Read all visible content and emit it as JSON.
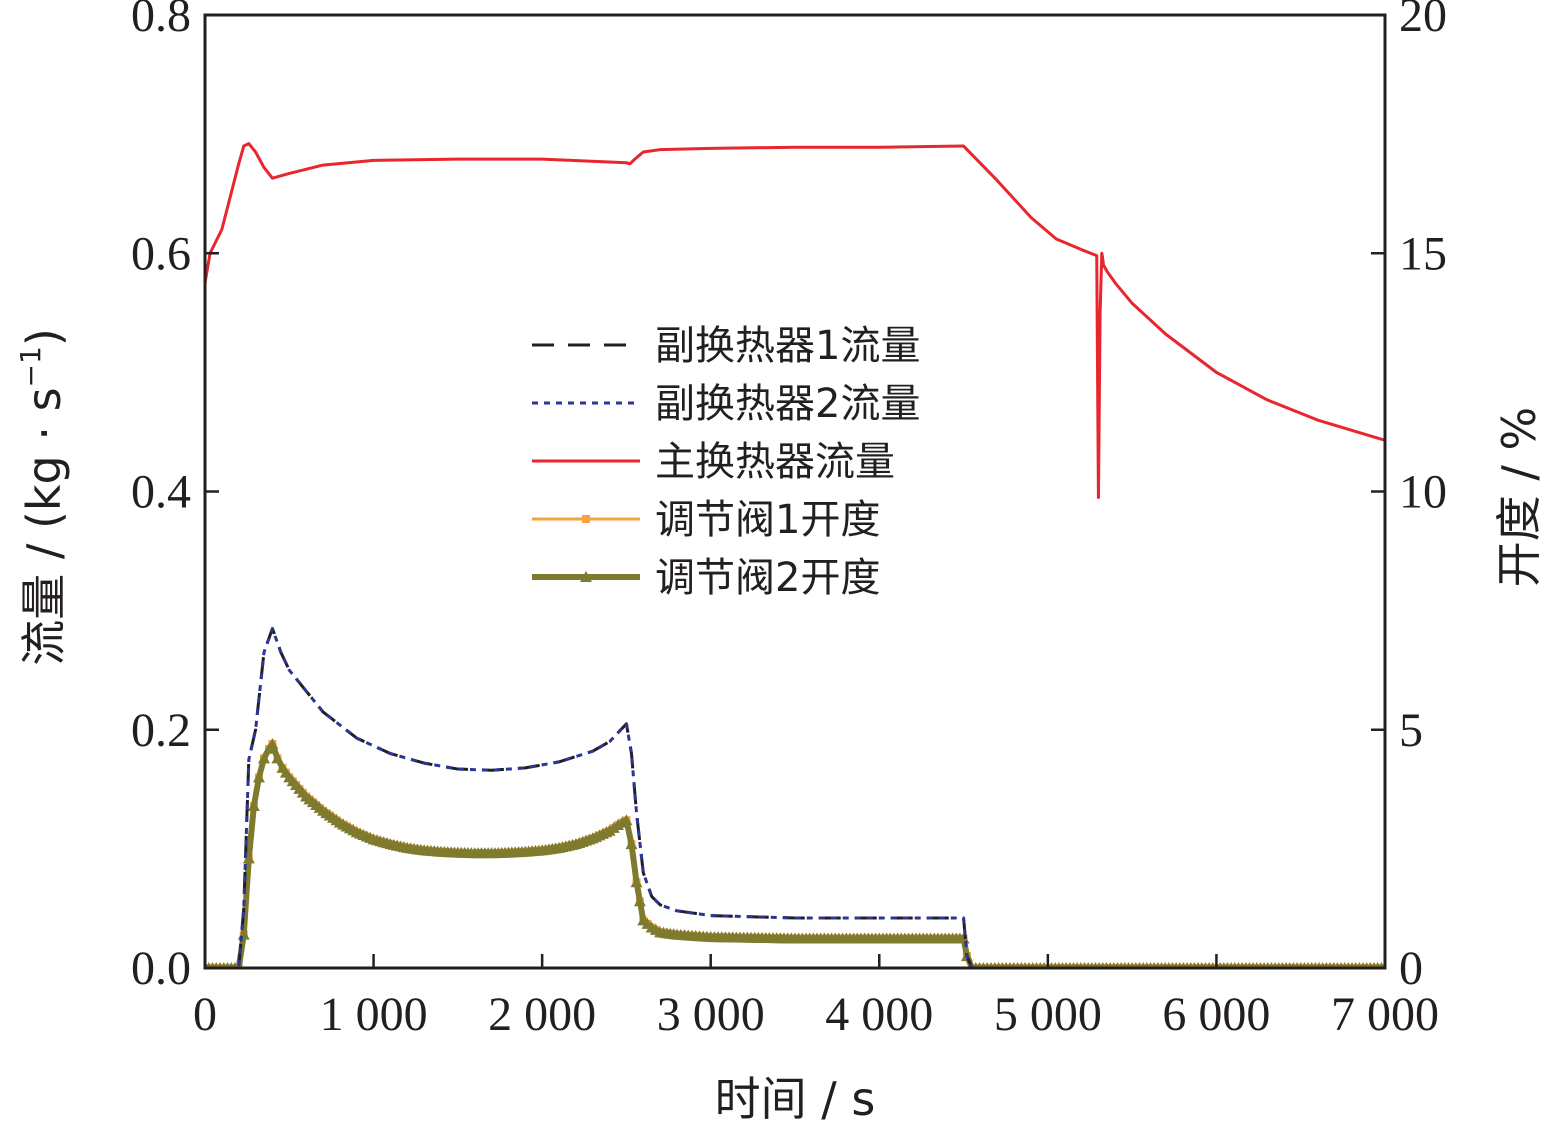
{
  "chart_data": {
    "type": "line",
    "title": "",
    "xlabel": "时间 / s",
    "ylabel_left": {
      "pre": "流量 / (kg · s",
      "sup": "−1",
      "post": ")"
    },
    "ylabel_right": "开度 / %",
    "xlim": [
      0,
      7000
    ],
    "ylim_left": [
      0,
      0.8
    ],
    "ylim_right": [
      0,
      20
    ],
    "x_ticks": [
      0,
      1000,
      2000,
      3000,
      4000,
      5000,
      6000,
      7000
    ],
    "x_tick_labels": [
      "0",
      "1 000",
      "2 000",
      "3 000",
      "4 000",
      "5 000",
      "6 000",
      "7 000"
    ],
    "y_left_ticks": [
      0,
      0.2,
      0.4,
      0.6,
      0.8
    ],
    "y_left_tick_labels": [
      "0.0",
      "0.2",
      "0.4",
      "0.6",
      "0.8"
    ],
    "y_right_ticks": [
      0,
      5,
      10,
      15,
      20
    ],
    "y_right_tick_labels": [
      "0",
      "5",
      "10",
      "15",
      "20"
    ],
    "grid": false,
    "legend_position": "center",
    "series": [
      {
        "name": "副换热器1流量",
        "axis": "left",
        "color": "#231f20",
        "style": "dash",
        "marker": "none",
        "x": [
          0,
          200,
          230,
          260,
          300,
          350,
          400,
          450,
          500,
          700,
          900,
          1100,
          1300,
          1500,
          1700,
          1900,
          2100,
          2300,
          2400,
          2500,
          2530,
          2560,
          2600,
          2650,
          2700,
          2800,
          3000,
          3500,
          4000,
          4500,
          4520,
          4550,
          7000
        ],
        "y": [
          0,
          0,
          0.05,
          0.175,
          0.2,
          0.265,
          0.285,
          0.265,
          0.25,
          0.215,
          0.193,
          0.18,
          0.172,
          0.167,
          0.166,
          0.168,
          0.173,
          0.182,
          0.19,
          0.205,
          0.18,
          0.13,
          0.08,
          0.06,
          0.053,
          0.048,
          0.044,
          0.042,
          0.042,
          0.042,
          0.01,
          0,
          0
        ]
      },
      {
        "name": "副换热器2流量",
        "axis": "left",
        "color": "#2b3595",
        "style": "dot",
        "marker": "none",
        "x": [
          0,
          200,
          230,
          260,
          300,
          350,
          400,
          450,
          500,
          700,
          900,
          1100,
          1300,
          1500,
          1700,
          1900,
          2100,
          2300,
          2400,
          2500,
          2530,
          2560,
          2600,
          2650,
          2700,
          2800,
          3000,
          3500,
          4000,
          4500,
          4520,
          4550,
          7000
        ],
        "y": [
          0,
          0,
          0.05,
          0.175,
          0.2,
          0.265,
          0.285,
          0.265,
          0.25,
          0.215,
          0.193,
          0.18,
          0.172,
          0.167,
          0.166,
          0.168,
          0.173,
          0.182,
          0.19,
          0.205,
          0.18,
          0.13,
          0.08,
          0.06,
          0.053,
          0.048,
          0.044,
          0.042,
          0.042,
          0.042,
          0.01,
          0,
          0
        ]
      },
      {
        "name": "主换热器流量",
        "axis": "left",
        "color": "#e8262d",
        "style": "solid",
        "marker": "none",
        "x": [
          0,
          30,
          100,
          200,
          230,
          260,
          300,
          350,
          400,
          500,
          700,
          1000,
          1500,
          2000,
          2500,
          2520,
          2550,
          2600,
          2700,
          3000,
          3500,
          4000,
          4500,
          4700,
          4900,
          5050,
          5200,
          5290,
          5300,
          5310,
          5320,
          5325,
          5330,
          5350,
          5400,
          5500,
          5700,
          6000,
          6300,
          6600,
          7000
        ],
        "y": [
          0.575,
          0.6,
          0.62,
          0.675,
          0.69,
          0.692,
          0.685,
          0.672,
          0.663,
          0.667,
          0.674,
          0.678,
          0.679,
          0.679,
          0.676,
          0.675,
          0.679,
          0.685,
          0.687,
          0.688,
          0.689,
          0.689,
          0.69,
          0.661,
          0.63,
          0.612,
          0.603,
          0.598,
          0.395,
          0.55,
          0.6,
          0.596,
          0.59,
          0.585,
          0.575,
          0.558,
          0.532,
          0.5,
          0.477,
          0.46,
          0.443
        ]
      },
      {
        "name": "调节阀1开度",
        "axis": "right",
        "color": "#f6a33c",
        "style": "solid",
        "marker": "square",
        "x": [
          0,
          200,
          230,
          260,
          290,
          320,
          350,
          380,
          400,
          430,
          460,
          500,
          600,
          700,
          800,
          900,
          1000,
          1100,
          1200,
          1300,
          1400,
          1500,
          1600,
          1700,
          1800,
          1900,
          2000,
          2100,
          2200,
          2300,
          2400,
          2450,
          2500,
          2530,
          2560,
          2600,
          2650,
          2700,
          2800,
          3000,
          3500,
          4000,
          4500,
          4520,
          4550,
          5000,
          5500,
          6000,
          6500,
          7000
        ],
        "y": [
          0,
          0,
          0.7,
          2.3,
          3.4,
          4.0,
          4.4,
          4.6,
          4.7,
          4.4,
          4.2,
          4.0,
          3.6,
          3.3,
          3.05,
          2.85,
          2.7,
          2.6,
          2.52,
          2.47,
          2.44,
          2.42,
          2.41,
          2.41,
          2.42,
          2.44,
          2.47,
          2.52,
          2.6,
          2.72,
          2.88,
          3.0,
          3.1,
          2.6,
          1.8,
          1.0,
          0.85,
          0.75,
          0.7,
          0.65,
          0.62,
          0.62,
          0.62,
          0.25,
          0,
          0,
          0,
          0,
          0,
          0
        ]
      },
      {
        "name": "调节阀2开度",
        "axis": "right",
        "color": "#7f7b2e",
        "style": "solid",
        "marker": "triangle",
        "x": [
          0,
          200,
          230,
          260,
          290,
          320,
          350,
          380,
          400,
          430,
          460,
          500,
          600,
          700,
          800,
          900,
          1000,
          1100,
          1200,
          1300,
          1400,
          1500,
          1600,
          1700,
          1800,
          1900,
          2000,
          2100,
          2200,
          2300,
          2400,
          2450,
          2500,
          2530,
          2560,
          2600,
          2650,
          2700,
          2800,
          3000,
          3500,
          4000,
          4500,
          4520,
          4550,
          5000,
          5500,
          6000,
          6500,
          7000
        ],
        "y": [
          0,
          0,
          0.7,
          2.3,
          3.4,
          4.0,
          4.4,
          4.6,
          4.7,
          4.4,
          4.2,
          4.0,
          3.6,
          3.3,
          3.05,
          2.85,
          2.7,
          2.6,
          2.52,
          2.47,
          2.44,
          2.42,
          2.41,
          2.41,
          2.42,
          2.44,
          2.47,
          2.52,
          2.6,
          2.72,
          2.88,
          3.0,
          3.1,
          2.6,
          1.8,
          1.0,
          0.85,
          0.75,
          0.7,
          0.65,
          0.62,
          0.62,
          0.62,
          0.25,
          0,
          0,
          0,
          0,
          0,
          0
        ]
      }
    ]
  }
}
